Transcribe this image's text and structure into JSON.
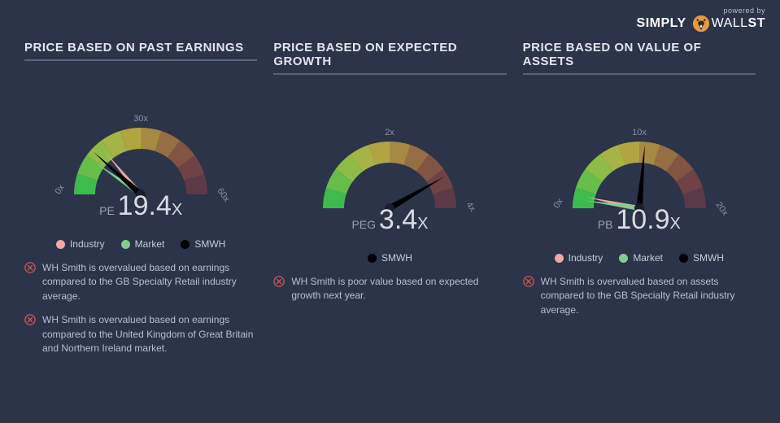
{
  "branding": {
    "powered": "powered by",
    "brand1": "SIMPLY",
    "brand2": "WALL",
    "brand3": "ST"
  },
  "colors": {
    "background": "#2b3449",
    "text": "#d8dce2",
    "muted": "#9aa1b0",
    "divider": "#5a6378",
    "industry": "#f3a8a1",
    "market": "#7ed08a",
    "stock": "#000000",
    "fail": "#d9534f",
    "gradient": [
      "#3dbb4d",
      "#6bc94a",
      "#9dd446",
      "#c8d942",
      "#e9d43e",
      "#eebb3e",
      "#e89a3e",
      "#dd7640",
      "#cc5842",
      "#b54545"
    ]
  },
  "panels": [
    {
      "title": "PRICE BASED ON PAST EARNINGS",
      "gauge": {
        "metric": "PE",
        "value": "19.4",
        "min": 0,
        "mid": 30,
        "max": 60,
        "tick_min": "0x",
        "tick_mid": "30x",
        "tick_max": "60x",
        "needles": [
          {
            "angle_deg": -40,
            "color": "#f3a8a1",
            "width": 3,
            "len": 68
          },
          {
            "angle_deg": -55,
            "color": "#7ed08a",
            "width": 3,
            "len": 68
          },
          {
            "angle_deg": -48,
            "color": "#000000",
            "width": 4,
            "len": 78
          }
        ]
      },
      "legend": [
        {
          "label": "Industry",
          "color": "#f3a8a1"
        },
        {
          "label": "Market",
          "color": "#7ed08a"
        },
        {
          "label": "SMWH",
          "color": "#000000"
        }
      ],
      "notes": [
        "WH Smith is overvalued based on earnings compared to the GB Specialty Retail industry average.",
        "WH Smith is overvalued based on earnings compared to the United Kingdom of Great Britain and Northern Ireland market."
      ]
    },
    {
      "title": "PRICE BASED ON EXPECTED GROWTH",
      "gauge": {
        "metric": "PEG",
        "value": "3.4",
        "min": 0,
        "mid": 2,
        "max": 4,
        "tick_min": "",
        "tick_mid": "2x",
        "tick_max": "4x",
        "needles": [
          {
            "angle_deg": 60,
            "color": "#000000",
            "width": 4,
            "len": 78
          }
        ]
      },
      "legend": [
        {
          "label": "SMWH",
          "color": "#000000"
        }
      ],
      "notes": [
        "WH Smith is poor value based on expected growth next year."
      ]
    },
    {
      "title": "PRICE BASED ON VALUE OF ASSETS",
      "gauge": {
        "metric": "PB",
        "value": "10.9",
        "min": 0,
        "mid": 10,
        "max": 20,
        "tick_min": "0x",
        "tick_mid": "10x",
        "tick_max": "20x",
        "needles": [
          {
            "angle_deg": -78,
            "color": "#f3a8a1",
            "width": 3,
            "len": 68
          },
          {
            "angle_deg": -82,
            "color": "#7ed08a",
            "width": 3,
            "len": 68
          },
          {
            "angle_deg": 5,
            "color": "#000000",
            "width": 4,
            "len": 78
          }
        ]
      },
      "legend": [
        {
          "label": "Industry",
          "color": "#f3a8a1"
        },
        {
          "label": "Market",
          "color": "#7ed08a"
        },
        {
          "label": "SMWH",
          "color": "#000000"
        }
      ],
      "notes": [
        "WH Smith is overvalued based on assets compared to the GB Specialty Retail industry average."
      ]
    }
  ]
}
